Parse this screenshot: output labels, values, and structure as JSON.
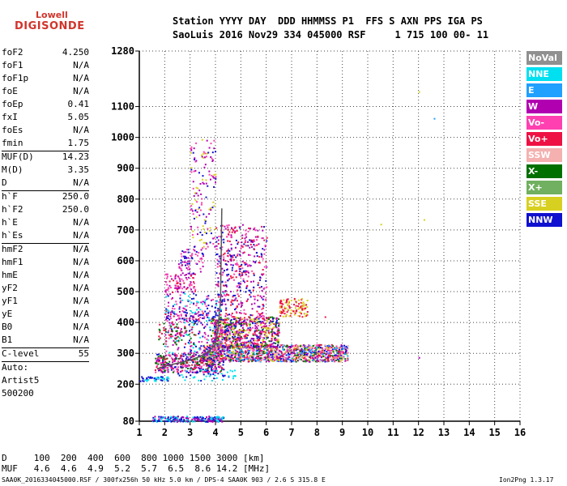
{
  "logo": {
    "line1": "Lowell",
    "line2": "DIGISONDE"
  },
  "header": {
    "line1": "Station YYYY DAY  DDD HHMMSS P1  FFS S AXN PPS IGA PS",
    "line2": "SaoLuis 2016 Nov29 334 045000 RSF     1 715 100 00- 11"
  },
  "params": [
    {
      "k": "foF2",
      "v": "4.250"
    },
    {
      "k": "foF1",
      "v": "N/A"
    },
    {
      "k": "foF1p",
      "v": "N/A"
    },
    {
      "k": "foE",
      "v": "N/A"
    },
    {
      "k": "foEp",
      "v": "0.41"
    },
    {
      "k": "fxI",
      "v": "5.05"
    },
    {
      "k": "foEs",
      "v": "N/A"
    },
    {
      "k": "fmin",
      "v": "1.75"
    },
    {
      "k": "MUF(D)",
      "v": "14.23",
      "sep": true
    },
    {
      "k": "M(D)",
      "v": "3.35"
    },
    {
      "k": "D",
      "v": "N/A"
    },
    {
      "k": "h`F",
      "v": "250.0",
      "sep": true
    },
    {
      "k": "h`F2",
      "v": "250.0"
    },
    {
      "k": "h`E",
      "v": "N/A"
    },
    {
      "k": "h`Es",
      "v": "N/A"
    },
    {
      "k": "hmF2",
      "v": "N/A",
      "sep": true
    },
    {
      "k": "hmF1",
      "v": "N/A"
    },
    {
      "k": "hmE",
      "v": "N/A"
    },
    {
      "k": "yF2",
      "v": "N/A"
    },
    {
      "k": "yF1",
      "v": "N/A"
    },
    {
      "k": "yE",
      "v": "N/A"
    },
    {
      "k": "B0",
      "v": "N/A"
    },
    {
      "k": "B1",
      "v": "N/A"
    },
    {
      "k": "C-level",
      "v": "55",
      "sep": true
    },
    {
      "k": "Auto:",
      "v": "",
      "sep": true
    },
    {
      "k": "Artist5",
      "v": ""
    },
    {
      "k": "500200",
      "v": ""
    }
  ],
  "legend": [
    {
      "label": "NoVal",
      "color": "#909090"
    },
    {
      "label": "NNE",
      "color": "#00e0f0"
    },
    {
      "label": "E",
      "color": "#20a0ff"
    },
    {
      "label": "W",
      "color": "#b000b0"
    },
    {
      "label": "Vo-",
      "color": "#ff40b0"
    },
    {
      "label": "Vo+",
      "color": "#ee1144"
    },
    {
      "label": "SSW",
      "color": "#f5b0b0"
    },
    {
      "label": "X-",
      "color": "#007000"
    },
    {
      "label": "X+",
      "color": "#70b060"
    },
    {
      "label": "SSE",
      "color": "#d8d020"
    },
    {
      "label": "NNW",
      "color": "#1010d0"
    }
  ],
  "footer": {
    "line1": "D     100  200  400  600  800 1000 1500 3000 [km]",
    "line2": "MUF   4.6  4.6  4.9  5.2  5.7  6.5  8.6 14.2 [MHz]",
    "bottom": "SAA0K_2016334045000.RSF / 300fx256h 50 kHz 5.0 km / DPS-4 SAA0K 903 / 2.6 S 315.8 E",
    "version": "Ion2Png 1.3.17"
  },
  "chart_data": {
    "type": "scatter",
    "xlim": [
      1,
      16
    ],
    "ylim": [
      80,
      1280
    ],
    "xticks": [
      1,
      2,
      3,
      4,
      5,
      6,
      7,
      8,
      9,
      10,
      11,
      12,
      13,
      14,
      15,
      16
    ],
    "yticks": [
      80,
      200,
      300,
      400,
      500,
      600,
      700,
      800,
      900,
      1000,
      1100,
      1280
    ],
    "grid": true,
    "trace": {
      "x": [
        1.7,
        2.0,
        2.5,
        3.0,
        3.4,
        3.8,
        4.0,
        4.1,
        4.2,
        4.25
      ],
      "y": [
        250,
        258,
        268,
        278,
        290,
        310,
        330,
        380,
        470,
        770
      ]
    },
    "clusters": [
      {
        "xr": [
          1.5,
          4.3
        ],
        "yr": [
          80,
          98
        ],
        "n": 220,
        "colors": [
          "#1010d0",
          "#b000b0",
          "#00e0f0"
        ]
      },
      {
        "xr": [
          1.0,
          2.2
        ],
        "yr": [
          212,
          228
        ],
        "n": 45,
        "colors": [
          "#1010d0",
          "#00e0f0"
        ]
      },
      {
        "xr": [
          1.6,
          4.3
        ],
        "yr": [
          240,
          300
        ],
        "n": 420,
        "colors": [
          "#ff40b0",
          "#007000",
          "#ee1144",
          "#1010d0",
          "#b000b0"
        ]
      },
      {
        "xr": [
          3.5,
          9.2
        ],
        "yr": [
          275,
          330
        ],
        "n": 1300,
        "colors": [
          "#ff40b0",
          "#ee1144",
          "#b000b0",
          "#007000",
          "#d8d020",
          "#1010d0",
          "#f5b0b0",
          "#20a0ff"
        ]
      },
      {
        "xr": [
          3.8,
          6.5
        ],
        "yr": [
          320,
          420
        ],
        "n": 700,
        "colors": [
          "#ff40b0",
          "#ee1144",
          "#b000b0",
          "#007000",
          "#d8d020",
          "#1010d0"
        ]
      },
      {
        "xr": [
          2.0,
          3.5
        ],
        "yr": [
          400,
          440
        ],
        "n": 60,
        "colors": [
          "#1010d0",
          "#ee1144",
          "#ff40b0",
          "#b000b0"
        ]
      },
      {
        "xr": [
          2.0,
          3.2
        ],
        "yr": [
          500,
          560
        ],
        "n": 90,
        "colors": [
          "#ff40b0",
          "#ee1144",
          "#b000b0"
        ]
      },
      {
        "xr": [
          2.5,
          3.5
        ],
        "yr": [
          560,
          640
        ],
        "n": 70,
        "colors": [
          "#ff40b0",
          "#b000b0",
          "#1010d0"
        ]
      },
      {
        "xr": [
          6.5,
          7.6
        ],
        "yr": [
          420,
          480
        ],
        "n": 110,
        "colors": [
          "#d8d020",
          "#ee1144"
        ]
      },
      {
        "xr": [
          3.0,
          4.0
        ],
        "yr": [
          640,
          1000
        ],
        "n": 140,
        "colors": [
          "#ff40b0",
          "#1010d0",
          "#b000b0",
          "#d8d020"
        ]
      },
      {
        "xr": [
          4.0,
          6.0
        ],
        "yr": [
          420,
          720
        ],
        "n": 420,
        "colors": [
          "#1010d0",
          "#b000b0",
          "#ff40b0",
          "#ee1144"
        ]
      },
      {
        "xr": [
          2.0,
          4.3
        ],
        "yr": [
          300,
          500
        ],
        "n": 300,
        "colors": [
          "#1010d0",
          "#b000b0",
          "#ff40b0",
          "#00e0f0"
        ]
      },
      {
        "xr": [
          1.7,
          3.2
        ],
        "yr": [
          330,
          400
        ],
        "n": 60,
        "colors": [
          "#007000",
          "#ee1144"
        ]
      },
      {
        "xr": [
          2.5,
          4.8
        ],
        "yr": [
          212,
          250
        ],
        "n": 50,
        "colors": [
          "#00e0f0",
          "#1010d0"
        ]
      }
    ],
    "isolated": [
      {
        "x": 12.0,
        "y": 1150,
        "c": "#d8d020"
      },
      {
        "x": 12.6,
        "y": 1063,
        "c": "#20a0ff"
      },
      {
        "x": 10.5,
        "y": 720,
        "c": "#d8d020"
      },
      {
        "x": 12.2,
        "y": 735,
        "c": "#d8d020"
      },
      {
        "x": 12.0,
        "y": 288,
        "c": "#b000b0"
      },
      {
        "x": 8.3,
        "y": 420,
        "c": "#ee1144"
      }
    ]
  }
}
